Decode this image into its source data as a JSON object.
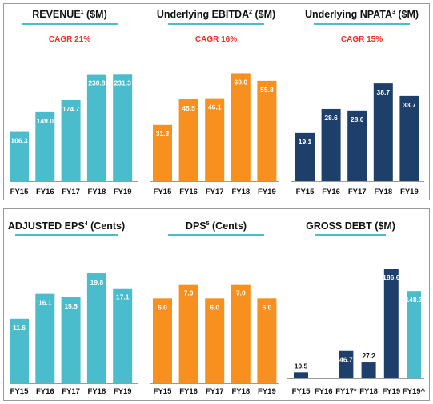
{
  "colors": {
    "teal": "#4bbccc",
    "orange": "#f7901e",
    "navy": "#1f3f6b",
    "underline": "#4bbccc",
    "cagr": "#e8302a",
    "axis": "#9a9a9a"
  },
  "chart_data": [
    {
      "type": "bar",
      "title": "REVENUE",
      "title_sup": "1",
      "title_suffix": " ($M)",
      "annotation": "CAGR 21%",
      "categories": [
        "FY15",
        "FY16",
        "FY17",
        "FY18",
        "FY19"
      ],
      "values": [
        106.3,
        149.0,
        174.7,
        230.8,
        231.3
      ],
      "labels": [
        "106.3",
        "149.0",
        "174.7",
        "230.8",
        "231.3"
      ],
      "color": "teal",
      "ylim": [
        0,
        256
      ]
    },
    {
      "type": "bar",
      "title": "Underlying EBITDA",
      "title_sup": "2",
      "title_suffix": " ($M)",
      "annotation": "CAGR 16%",
      "categories": [
        "FY15",
        "FY16",
        "FY17",
        "FY18",
        "FY19"
      ],
      "values": [
        31.3,
        45.5,
        46.1,
        60.0,
        55.8
      ],
      "labels": [
        "31.3",
        "45.5",
        "46.1",
        "60.0",
        "55.8"
      ],
      "color": "orange",
      "ylim": [
        0,
        66
      ]
    },
    {
      "type": "bar",
      "title": "Underlying NPATA",
      "title_sup": "3",
      "title_suffix": " ($M)",
      "annotation": "CAGR 15%",
      "categories": [
        "FY15",
        "FY16",
        "FY17",
        "FY18",
        "FY19"
      ],
      "values": [
        19.1,
        28.6,
        28.0,
        38.7,
        33.7
      ],
      "labels": [
        "19.1",
        "28.6",
        "28.0",
        "38.7",
        "33.7"
      ],
      "color": "navy",
      "ylim": [
        0,
        47
      ]
    },
    {
      "type": "bar",
      "title": "ADJUSTED EPS",
      "title_sup": "4",
      "title_suffix": " (Cents)",
      "annotation": "",
      "categories": [
        "FY15",
        "FY16",
        "FY17",
        "FY18",
        "FY19"
      ],
      "values": [
        11.6,
        16.1,
        15.5,
        19.8,
        17.1
      ],
      "labels": [
        "11.6",
        "16.1",
        "15.5",
        "19.8",
        "17.1"
      ],
      "color": "teal",
      "ylim": [
        0,
        21.4
      ]
    },
    {
      "type": "bar",
      "title": "DPS",
      "title_sup": "5",
      "title_suffix": " (Cents)",
      "annotation": "",
      "categories": [
        "FY15",
        "FY16",
        "FY17",
        "FY18",
        "FY19"
      ],
      "values": [
        6.0,
        7.0,
        6.0,
        7.0,
        6.0
      ],
      "labels": [
        "6.0",
        "7.0",
        "6.0",
        "7.0",
        "6.0"
      ],
      "color": "orange",
      "ylim": [
        0,
        8.4
      ]
    },
    {
      "type": "bar",
      "title": "GROSS DEBT",
      "title_sup": "",
      "title_suffix": " ($M)",
      "annotation": "",
      "categories": [
        "FY15",
        "FY16",
        "FY17*",
        "FY18",
        "FY19",
        "FY19^"
      ],
      "values": [
        10.5,
        0,
        46.7,
        27.2,
        186.6,
        148.3
      ],
      "labels": [
        "10.5",
        "",
        "46.7",
        "27.2",
        "186.6",
        "148.3"
      ],
      "colors": [
        "navy",
        "navy",
        "navy",
        "navy",
        "navy",
        "teal"
      ],
      "ylim": [
        0,
        199
      ]
    }
  ]
}
